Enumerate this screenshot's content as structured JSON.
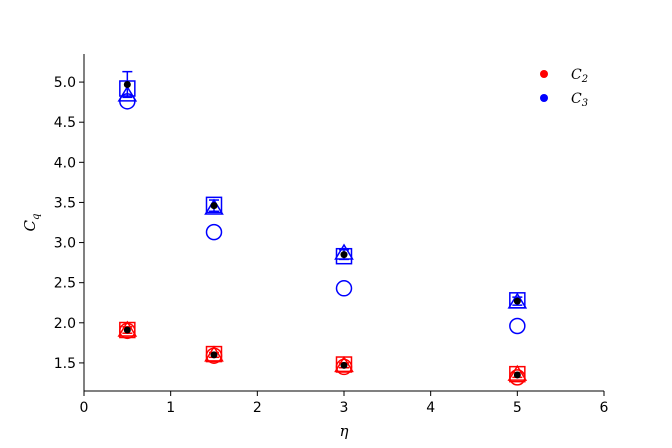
{
  "chart_data": {
    "type": "scatter",
    "xlabel": "η",
    "ylabel": {
      "main": "C",
      "sub": "q"
    },
    "xlim": [
      0,
      6
    ],
    "ylim": [
      1.15,
      5.35
    ],
    "xticks": [
      0,
      1,
      2,
      3,
      4,
      5,
      6
    ],
    "yticks": [
      1.5,
      2.0,
      2.5,
      3.0,
      3.5,
      4.0,
      4.5,
      5.0
    ],
    "ytick_labels": [
      "1.5",
      "2.0",
      "2.5",
      "3.0",
      "3.5",
      "4.0",
      "4.5",
      "5.0"
    ],
    "grid": false,
    "legend_position": "top-right",
    "x": [
      0.5,
      1.5,
      3.0,
      5.0
    ],
    "series": [
      {
        "name": "C2",
        "label_main": "C",
        "label_sub": "2",
        "color": "#ff0000",
        "mean": [
          1.91,
          1.6,
          1.47,
          1.35
        ],
        "err": [
          0.04,
          0.03,
          0.03,
          0.03
        ],
        "circle": [
          1.9,
          1.59,
          1.45,
          1.32
        ],
        "square": [
          1.91,
          1.61,
          1.48,
          1.36
        ],
        "triangle": [
          1.91,
          1.6,
          1.47,
          1.36
        ]
      },
      {
        "name": "C3",
        "label_main": "C",
        "label_sub": "3",
        "color": "#0000ff",
        "mean": [
          4.97,
          3.46,
          2.85,
          2.27
        ],
        "err": [
          0.16,
          0.07,
          0.06,
          0.05
        ],
        "circle": [
          4.76,
          3.13,
          2.43,
          1.96
        ],
        "square": [
          4.92,
          3.47,
          2.83,
          2.28
        ],
        "triangle": [
          4.84,
          3.43,
          2.87,
          2.26
        ]
      }
    ],
    "mean_marker_color": "#000000"
  }
}
